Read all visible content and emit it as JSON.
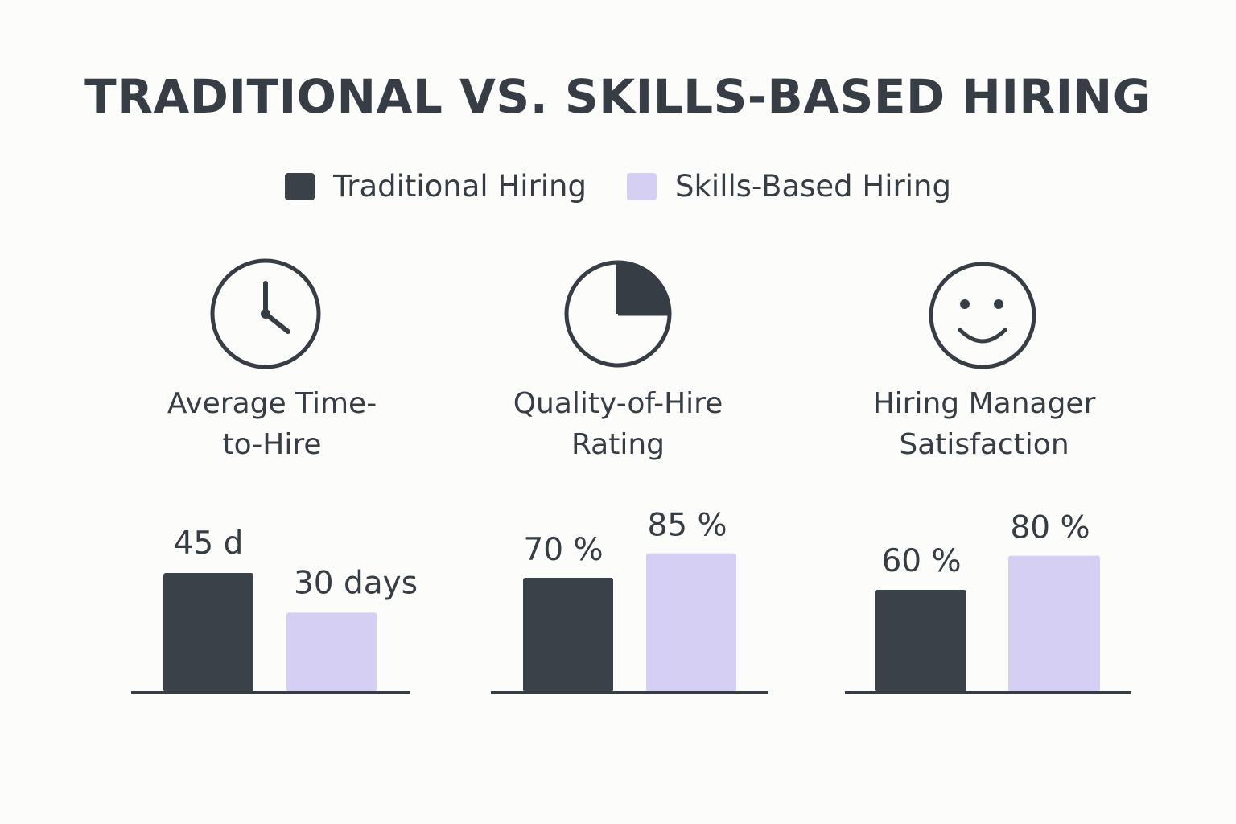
{
  "title": "TRADITIONAL VS. SKILLS-BASED HIRING",
  "legend": [
    {
      "label": "Traditional Hiring",
      "color": "#3b4148"
    },
    {
      "label": "Skills-Based Hiring",
      "color": "#d6cff4"
    }
  ],
  "chart_data": [
    {
      "type": "bar",
      "title": "Average Time-to-Hire",
      "title_lines": [
        "Average Time-",
        "to-Hire"
      ],
      "icon": "clock-icon",
      "categories": [
        "Traditional Hiring",
        "Skills-Based Hiring"
      ],
      "values": [
        45,
        30
      ],
      "value_labels": [
        "45 d",
        "30 days"
      ],
      "unit": "days"
    },
    {
      "type": "bar",
      "title": "Quality-of-Hire Rating",
      "title_lines": [
        "Quality-of-Hire",
        "Rating"
      ],
      "icon": "pie-chart-icon",
      "categories": [
        "Traditional Hiring",
        "Skills-Based Hiring"
      ],
      "values": [
        70,
        85
      ],
      "value_labels": [
        "70 %",
        "85 %"
      ],
      "unit": "%"
    },
    {
      "type": "bar",
      "title": "Hiring Manager Satisfaction",
      "title_lines": [
        "Hiring Manager",
        "Satisfaction"
      ],
      "icon": "smiley-face-icon",
      "categories": [
        "Traditional Hiring",
        "Skills-Based Hiring"
      ],
      "values": [
        60,
        80
      ],
      "value_labels": [
        "60 %",
        "80 %"
      ],
      "unit": "%"
    }
  ]
}
